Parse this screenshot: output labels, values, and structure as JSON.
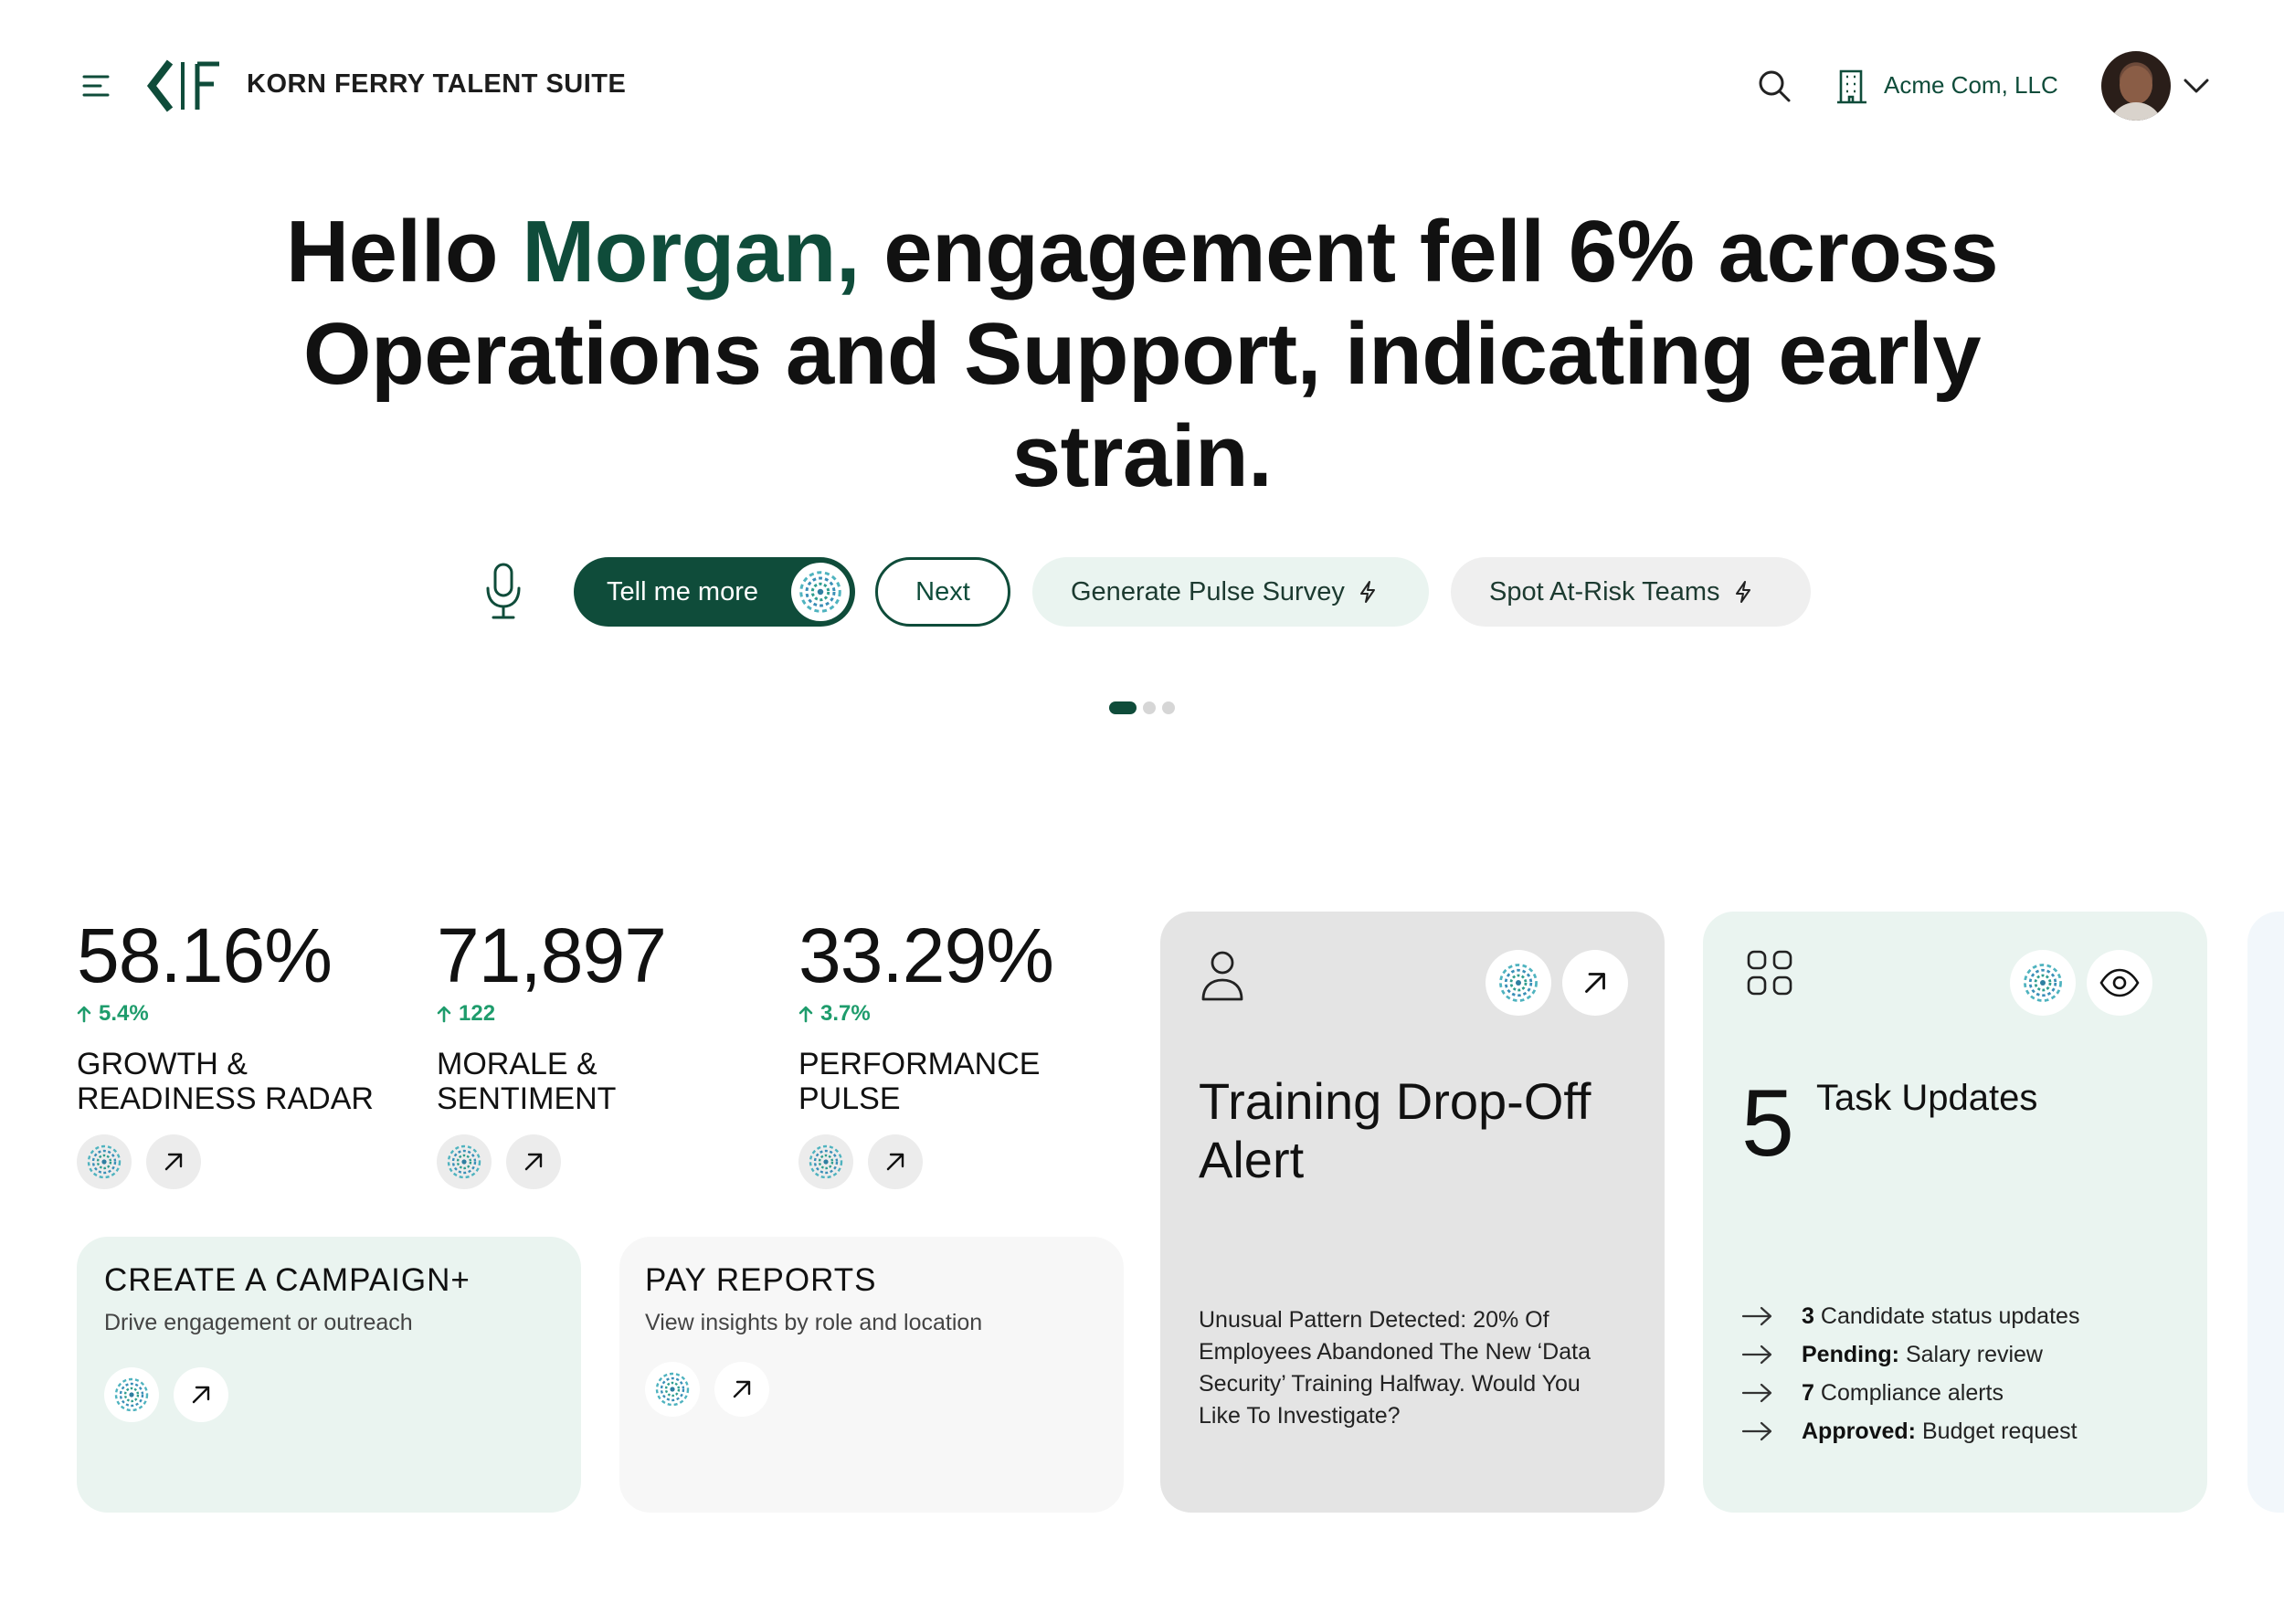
{
  "header": {
    "brand": "KORN FERRY TALENT SUITE",
    "company": "Acme Com, LLC"
  },
  "hero": {
    "greeting": "Hello ",
    "name": "Morgan,",
    "message": " engagement fell 6% across Operations and Support, indicating early strain."
  },
  "actions": {
    "tell_more": "Tell me more",
    "next": "Next",
    "pulse": "Generate Pulse Survey",
    "risk": "Spot At-Risk Teams"
  },
  "carousel": {
    "pages": 3,
    "active": 1
  },
  "metrics": [
    {
      "value": "58.16%",
      "delta": "5.4%",
      "label_1": "GROWTH &",
      "label_2": "READINESS RADAR"
    },
    {
      "value": "71,897",
      "delta": "122",
      "label_1": "MORALE &",
      "label_2": "SENTIMENT"
    },
    {
      "value": "33.29%",
      "delta": "3.7%",
      "label_1": "PERFORMANCE",
      "label_2": "PULSE"
    }
  ],
  "cards": {
    "campaign": {
      "title": "CREATE A CAMPAIGN+",
      "subtitle": "Drive engagement or outreach"
    },
    "pay": {
      "title": "PAY REPORTS",
      "subtitle": "View insights by role and location"
    },
    "training": {
      "title": "Training Drop-Off Alert",
      "body": "Unusual Pattern Detected: 20% Of Employees Abandoned The New ‘Data Security’ Training Halfway. Would You Like To Investigate?"
    },
    "tasks": {
      "count": "5",
      "title": "Task Updates",
      "items": [
        {
          "bold": "3",
          "text": "Candidate status updates"
        },
        {
          "bold": "Pending:",
          "text": "Salary review"
        },
        {
          "bold": "7",
          "text": "Compliance alerts"
        },
        {
          "bold": "Approved:",
          "text": "Budget request"
        }
      ]
    }
  },
  "colors": {
    "brand": "#0f4c3a",
    "accent": "#1e9c6c",
    "mint": "#eaf4f0"
  },
  "icons": [
    "menu-icon",
    "search-icon",
    "building-icon",
    "chevron-down-icon",
    "microphone-icon",
    "ai-assistant-icon",
    "bolt-icon",
    "arrow-up-right-icon",
    "person-icon",
    "apps-grid-icon",
    "eye-icon",
    "arrow-right-icon",
    "arrow-up-icon"
  ]
}
